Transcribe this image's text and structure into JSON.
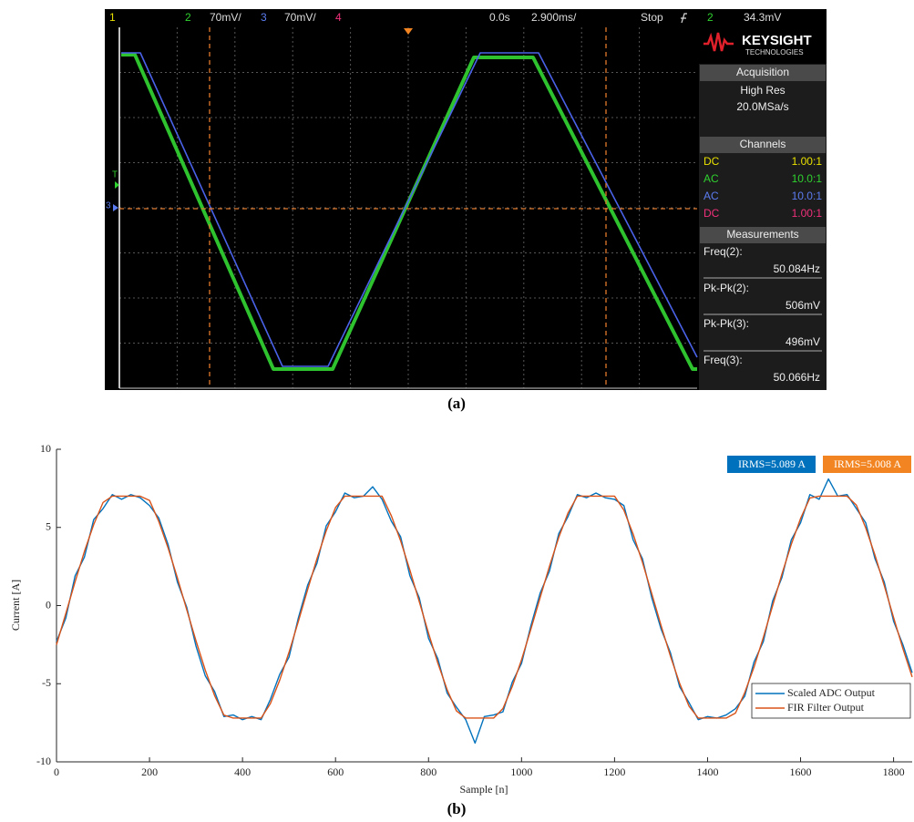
{
  "scope": {
    "top_bar": {
      "ch1": "1",
      "ch2": "2",
      "ch2_scale": "70mV/",
      "ch3": "3",
      "ch3_scale": "70mV/",
      "ch4": "4",
      "delay": "0.0s",
      "timebase": "2.900ms/",
      "status": "Stop",
      "trigger_channel": "2",
      "trigger_level": "34.3mV"
    },
    "markers": {
      "trigger": "T",
      "ch3": "3"
    },
    "logo": {
      "brand": "KEYSIGHT",
      "sub": "TECHNOLOGIES"
    },
    "acquisition": {
      "title": "Acquisition",
      "mode": "High Res",
      "rate": "20.0MSa/s"
    },
    "channels": {
      "title": "Channels",
      "rows": [
        [
          "DC",
          "1.00:1"
        ],
        [
          "AC",
          "10.0:1"
        ],
        [
          "AC",
          "10.0:1"
        ],
        [
          "DC",
          "1.00:1"
        ]
      ]
    },
    "measurements": {
      "title": "Measurements",
      "items": [
        [
          "Freq(2):",
          "50.084Hz"
        ],
        [
          "Pk-Pk(2):",
          "506mV"
        ],
        [
          "Pk-Pk(3):",
          "496mV"
        ],
        [
          "Freq(3):",
          "50.066Hz"
        ]
      ]
    }
  },
  "caption_a": "(a)",
  "chart_data": {
    "type": "line",
    "xlabel": "Sample [n]",
    "ylabel": "Current [A]",
    "x": [
      0,
      20,
      40,
      60,
      80,
      100,
      120,
      140,
      160,
      180,
      200,
      220,
      240,
      260,
      280,
      300,
      320,
      340,
      360,
      380,
      400,
      420,
      440,
      460,
      480,
      500,
      520,
      540,
      560,
      580,
      600,
      620,
      640,
      660,
      680,
      700,
      720,
      740,
      760,
      780,
      800,
      820,
      840,
      860,
      880,
      900,
      920,
      940,
      960,
      980,
      1000,
      1020,
      1040,
      1060,
      1080,
      1100,
      1120,
      1140,
      1160,
      1180,
      1200,
      1220,
      1240,
      1260,
      1280,
      1300,
      1320,
      1340,
      1360,
      1380,
      1400,
      1420,
      1440,
      1460,
      1480,
      1500,
      1520,
      1540,
      1560,
      1580,
      1600,
      1620,
      1640,
      1660,
      1680,
      1700,
      1720,
      1740,
      1760,
      1780,
      1800,
      1820,
      1840
    ],
    "series": [
      {
        "name": "Scaled ADC Output",
        "color": "#0072bd",
        "values": [
          -2.3,
          -0.8,
          1.9,
          3.1,
          5.5,
          6.2,
          7.1,
          6.8,
          7.1,
          6.9,
          6.4,
          5.6,
          3.9,
          1.5,
          -0.1,
          -2.6,
          -4.5,
          -5.5,
          -7.1,
          -7.0,
          -7.3,
          -7.1,
          -7.3,
          -6.0,
          -4.4,
          -3.3,
          -0.8,
          1.3,
          2.7,
          5.1,
          6.0,
          7.2,
          6.9,
          7.0,
          7.6,
          6.8,
          5.4,
          4.4,
          1.9,
          0.5,
          -2.1,
          -3.4,
          -5.6,
          -6.5,
          -7.3,
          -8.8,
          -7.1,
          -7.0,
          -6.8,
          -4.9,
          -3.7,
          -1.3,
          0.8,
          2.2,
          4.6,
          5.7,
          7.1,
          6.9,
          7.2,
          6.9,
          6.8,
          6.4,
          4.2,
          3.0,
          0.5,
          -1.5,
          -3.0,
          -5.2,
          -6.2,
          -7.3,
          -7.1,
          -7.2,
          -7.0,
          -6.6,
          -5.8,
          -3.6,
          -2.3,
          0.3,
          1.8,
          4.2,
          5.3,
          7.1,
          6.8,
          8.1,
          7.0,
          7.1,
          6.2,
          5.3,
          3.0,
          1.5,
          -1.0,
          -2.5,
          -4.3
        ]
      },
      {
        "name": "FIR Filter Output",
        "color": "#d95319",
        "values": [
          -2.51,
          -0.51,
          1.52,
          3.46,
          5.18,
          6.59,
          7,
          7,
          7,
          7,
          6.73,
          5.38,
          3.68,
          1.77,
          -0.26,
          -2.26,
          -4.14,
          -5.76,
          -7.01,
          -7.2,
          -7.2,
          -7.2,
          -7.2,
          -6.27,
          -4.77,
          -2.99,
          -1.02,
          1.02,
          2.99,
          4.78,
          6.27,
          7,
          7,
          7,
          7,
          7,
          5.75,
          4.14,
          2.26,
          0.26,
          -1.77,
          -3.68,
          -5.38,
          -6.74,
          -7.2,
          -7.2,
          -7.2,
          -7.2,
          -6.59,
          -5.18,
          -3.47,
          -1.52,
          0.51,
          2.51,
          4.36,
          5.93,
          7,
          7,
          7,
          7,
          7,
          6.11,
          4.57,
          2.77,
          0.77,
          -1.27,
          -3.22,
          -4.98,
          -6.43,
          -7.2,
          -7.2,
          -7.2,
          -7.2,
          -6.88,
          -5.57,
          -3.93,
          -2.03,
          0,
          2.03,
          3.91,
          5.57,
          6.88,
          7,
          7,
          7,
          7,
          6.43,
          4.98,
          3.23,
          1.27,
          -0.76,
          -2.75,
          -4.57
        ]
      }
    ],
    "annotations": [
      {
        "text": "IRMS=5.089 A",
        "color": "#0072bd"
      },
      {
        "text": "IRMS=5.008 A",
        "color": "#f28522"
      }
    ],
    "xlim": [
      0,
      1840
    ],
    "ylim": [
      -10,
      10
    ],
    "xticks": [
      0,
      200,
      400,
      600,
      800,
      1000,
      1200,
      1400,
      1600,
      1800
    ],
    "yticks": [
      -10,
      -5,
      0,
      5,
      10
    ],
    "legend": "lower right"
  },
  "caption_b": "(b)"
}
